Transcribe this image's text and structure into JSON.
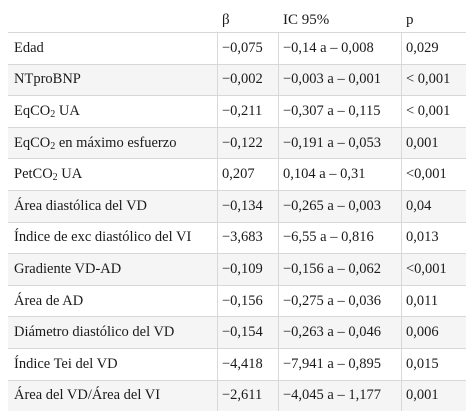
{
  "headers": {
    "beta": "β",
    "ic": "IC 95%",
    "p": "p"
  },
  "rows": [
    {
      "label": "Edad",
      "beta": "−0,075",
      "ic": "−0,14 a – 0,008",
      "p": "0,029"
    },
    {
      "label": "NTproBNP",
      "beta": "−0,002",
      "ic": "−0,003 a – 0,001",
      "p": "< 0,001"
    },
    {
      "label_pre": "EqCO",
      "label_sub": "2",
      "label_post": " UA",
      "beta": "−0,211",
      "ic": "−0,307 a – 0,115",
      "p": "< 0,001"
    },
    {
      "label_pre": "EqCO",
      "label_sub": "2",
      "label_post": " en máximo esfuerzo",
      "beta": "−0,122",
      "ic": "−0,191 a – 0,053",
      "p": "0,001"
    },
    {
      "label_pre": "PetCO",
      "label_sub": "2",
      "label_post": " UA",
      "beta": "0,207",
      "ic": "0,104 a – 0,31",
      "p": "<0,001"
    },
    {
      "label": "Área diastólica del VD",
      "beta": "−0,134",
      "ic": "−0,265 a – 0,003",
      "p": "0,04"
    },
    {
      "label": "Índice de exc diastólico del VI",
      "beta": "−3,683",
      "ic": "−6,55 a – 0,816",
      "p": "0,013"
    },
    {
      "label": "Gradiente VD-AD",
      "beta": "−0,109",
      "ic": "−0,156 a – 0,062",
      "p": "<0,001"
    },
    {
      "label": "Área de AD",
      "beta": "−0,156",
      "ic": "−0,275 a – 0,036",
      "p": "0,011"
    },
    {
      "label": "Diámetro diastólico del VD",
      "beta": "−0,154",
      "ic": "−0,263 a – 0,046",
      "p": "0,006"
    },
    {
      "label": "Índice Tei del VD",
      "beta": "−4,418",
      "ic": "−7,941 a – 0,895",
      "p": "0,015"
    },
    {
      "label": "Área del VD/Área del VI",
      "beta": "−2,611",
      "ic": "−4,045 a – 1,177",
      "p": "0,001"
    }
  ]
}
